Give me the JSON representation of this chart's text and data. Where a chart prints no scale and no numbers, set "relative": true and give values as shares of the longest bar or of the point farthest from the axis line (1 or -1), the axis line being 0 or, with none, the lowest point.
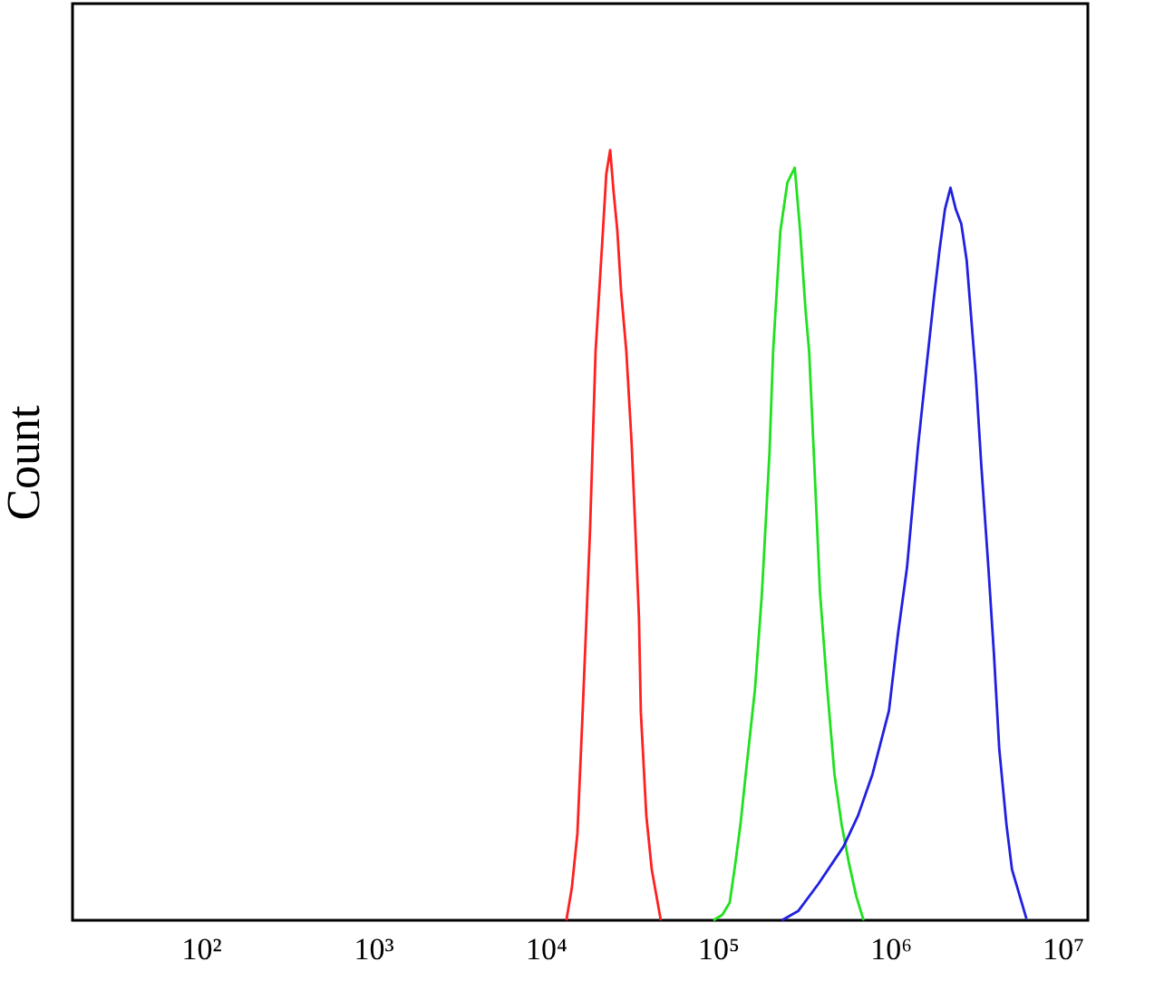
{
  "chart_data": {
    "type": "line",
    "relative": true,
    "ylabel": "Count",
    "log": "x",
    "grid": false,
    "legend": false,
    "marker": "none",
    "line_style": "solid",
    "xlim": [
      18,
      14000000
    ],
    "xticks": [
      {
        "value": 100,
        "label": "10²"
      },
      {
        "value": 1000,
        "label": "10³"
      },
      {
        "value": 10000,
        "label": "10⁴"
      },
      {
        "value": 100000,
        "label": "10⁵"
      },
      {
        "value": 1000000,
        "label": "10⁶"
      },
      {
        "value": 10000000,
        "label": "10⁷"
      }
    ],
    "series": [
      {
        "color": "#ff2020",
        "x": [
          13200,
          14200,
          15300,
          16400,
          18100,
          19500,
          21500,
          22500,
          23700,
          24800,
          26100,
          27400,
          29400,
          31600,
          33200,
          34800,
          35700,
          38400,
          41300,
          46600
        ],
        "values": [
          0,
          0.042,
          0.113,
          0.27,
          0.505,
          0.739,
          0.894,
          0.969,
          1,
          0.946,
          0.894,
          0.817,
          0.739,
          0.617,
          0.505,
          0.394,
          0.27,
          0.136,
          0.066,
          0
        ]
      },
      {
        "color": "#20e020",
        "x": [
          94000,
          106000,
          117000,
          126000,
          135000,
          145000,
          164000,
          180000,
          199000,
          209000,
          230000,
          253000,
          279000,
          300000,
          322000,
          338000,
          364000,
          391000,
          431000,
          474000,
          522000,
          577000,
          635000,
          700000
        ],
        "values": [
          0,
          0.007,
          0.023,
          0.073,
          0.124,
          0.19,
          0.3,
          0.425,
          0.606,
          0.739,
          0.894,
          0.958,
          0.977,
          0.894,
          0.793,
          0.739,
          0.582,
          0.425,
          0.3,
          0.19,
          0.124,
          0.073,
          0.031,
          0
        ]
      },
      {
        "color": "#2020e0",
        "x": [
          235000,
          292000,
          382000,
          536000,
          650000,
          789000,
          982000,
          1107000,
          1250000,
          1445000,
          1629000,
          1795000,
          1932000,
          2075000,
          2234000,
          2399000,
          2582000,
          2773000,
          3133000,
          3365000,
          3707000,
          3990000,
          4285000,
          4721000,
          5082000,
          6166000
        ],
        "values": [
          0,
          0.012,
          0.047,
          0.096,
          0.136,
          0.19,
          0.272,
          0.371,
          0.458,
          0.613,
          0.723,
          0.81,
          0.871,
          0.923,
          0.951,
          0.923,
          0.904,
          0.857,
          0.707,
          0.594,
          0.458,
          0.347,
          0.223,
          0.124,
          0.066,
          0.002
        ]
      }
    ]
  }
}
